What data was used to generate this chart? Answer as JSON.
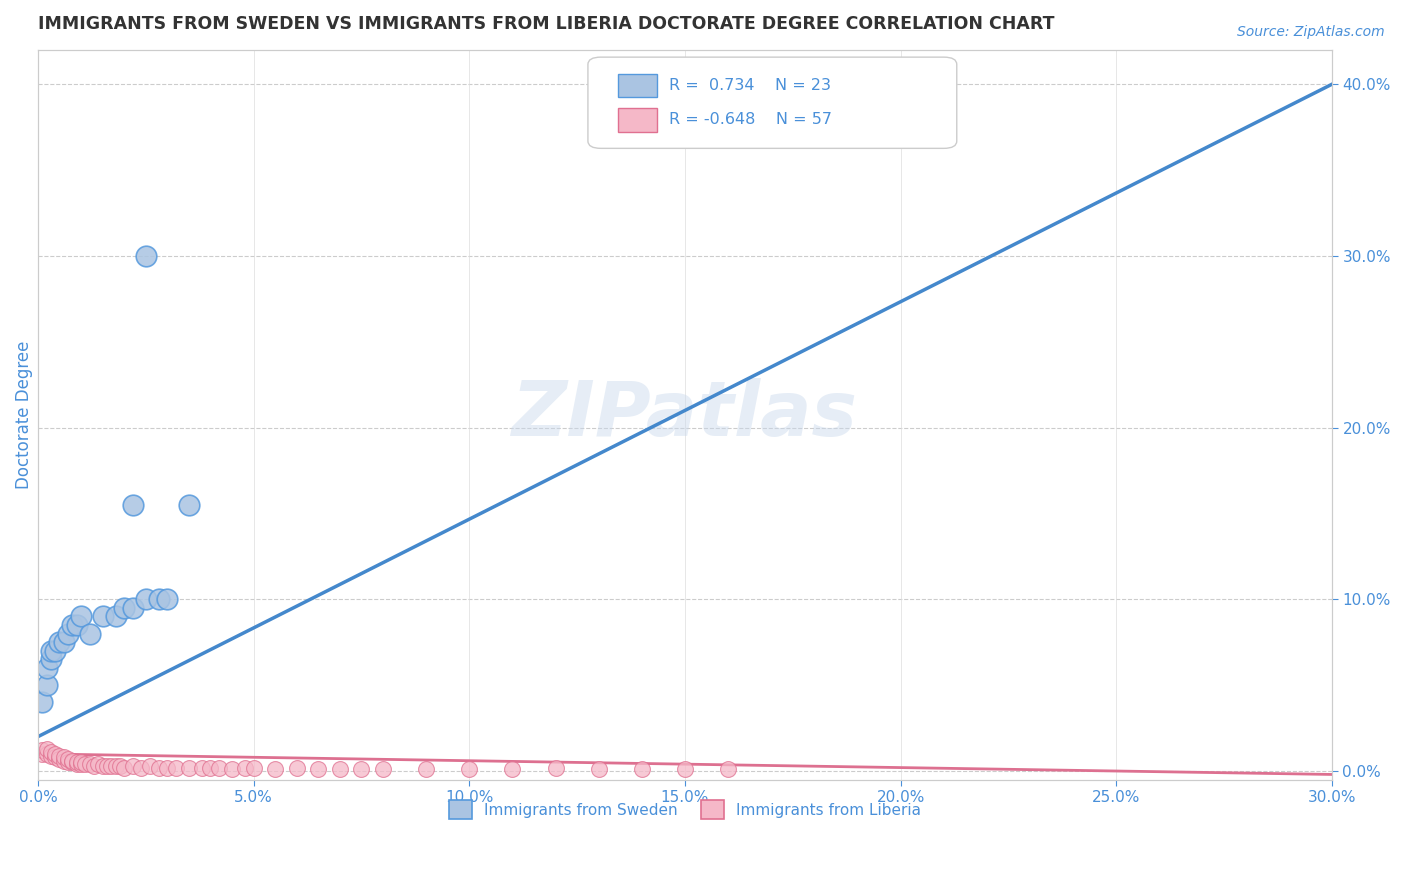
{
  "title": "IMMIGRANTS FROM SWEDEN VS IMMIGRANTS FROM LIBERIA DOCTORATE DEGREE CORRELATION CHART",
  "source_text": "Source: ZipAtlas.com",
  "ylabel": "Doctorate Degree",
  "xlim": [
    0.0,
    0.3
  ],
  "ylim": [
    -0.005,
    0.42
  ],
  "xticks": [
    0.0,
    0.05,
    0.1,
    0.15,
    0.2,
    0.25,
    0.3
  ],
  "xticklabels": [
    "0.0%",
    "5.0%",
    "10.0%",
    "15.0%",
    "20.0%",
    "25.0%",
    "30.0%"
  ],
  "yticks_right": [
    0.0,
    0.1,
    0.2,
    0.3,
    0.4
  ],
  "yticklabels_right": [
    "0.0%",
    "10.0%",
    "20.0%",
    "30.0%",
    "40.0%"
  ],
  "sweden_color": "#aac4e2",
  "sweden_edge_color": "#5599dd",
  "liberia_color": "#f5b8c8",
  "liberia_edge_color": "#e07090",
  "sweden_line_color": "#4488cc",
  "liberia_line_color": "#dd7090",
  "sweden_R": 0.734,
  "sweden_N": 23,
  "liberia_R": -0.648,
  "liberia_N": 57,
  "legend_label_sweden": "Immigrants from Sweden",
  "legend_label_liberia": "Immigrants from Liberia",
  "watermark": "ZIPatlas",
  "title_color": "#333333",
  "axis_color": "#4a90d9",
  "background_color": "#ffffff",
  "sweden_x": [
    0.001,
    0.002,
    0.002,
    0.003,
    0.003,
    0.004,
    0.005,
    0.006,
    0.007,
    0.008,
    0.009,
    0.01,
    0.012,
    0.015,
    0.018,
    0.02,
    0.022,
    0.025,
    0.028,
    0.03,
    0.035,
    0.025,
    0.022
  ],
  "sweden_y": [
    0.04,
    0.05,
    0.06,
    0.065,
    0.07,
    0.07,
    0.075,
    0.075,
    0.08,
    0.085,
    0.085,
    0.09,
    0.08,
    0.09,
    0.09,
    0.095,
    0.095,
    0.1,
    0.1,
    0.1,
    0.155,
    0.3,
    0.155
  ],
  "liberia_x": [
    0.001,
    0.001,
    0.002,
    0.002,
    0.003,
    0.003,
    0.004,
    0.004,
    0.005,
    0.005,
    0.006,
    0.006,
    0.007,
    0.007,
    0.008,
    0.008,
    0.009,
    0.009,
    0.01,
    0.01,
    0.011,
    0.012,
    0.013,
    0.014,
    0.015,
    0.016,
    0.017,
    0.018,
    0.019,
    0.02,
    0.022,
    0.024,
    0.026,
    0.028,
    0.03,
    0.032,
    0.035,
    0.038,
    0.04,
    0.042,
    0.045,
    0.048,
    0.05,
    0.055,
    0.06,
    0.065,
    0.07,
    0.075,
    0.08,
    0.09,
    0.1,
    0.11,
    0.12,
    0.13,
    0.14,
    0.15,
    0.16
  ],
  "liberia_y": [
    0.01,
    0.012,
    0.01,
    0.013,
    0.009,
    0.011,
    0.008,
    0.01,
    0.007,
    0.009,
    0.006,
    0.008,
    0.005,
    0.007,
    0.005,
    0.006,
    0.004,
    0.005,
    0.004,
    0.005,
    0.004,
    0.004,
    0.003,
    0.004,
    0.003,
    0.003,
    0.003,
    0.003,
    0.003,
    0.002,
    0.003,
    0.002,
    0.003,
    0.002,
    0.002,
    0.002,
    0.002,
    0.002,
    0.002,
    0.002,
    0.001,
    0.002,
    0.002,
    0.001,
    0.002,
    0.001,
    0.001,
    0.001,
    0.001,
    0.001,
    0.001,
    0.001,
    0.002,
    0.001,
    0.001,
    0.001,
    0.001
  ],
  "sweden_trend_x": [
    0.0,
    0.3
  ],
  "sweden_trend_y": [
    0.02,
    0.4
  ],
  "liberia_trend_x": [
    0.0,
    0.3
  ],
  "liberia_trend_y": [
    0.01,
    -0.002
  ]
}
